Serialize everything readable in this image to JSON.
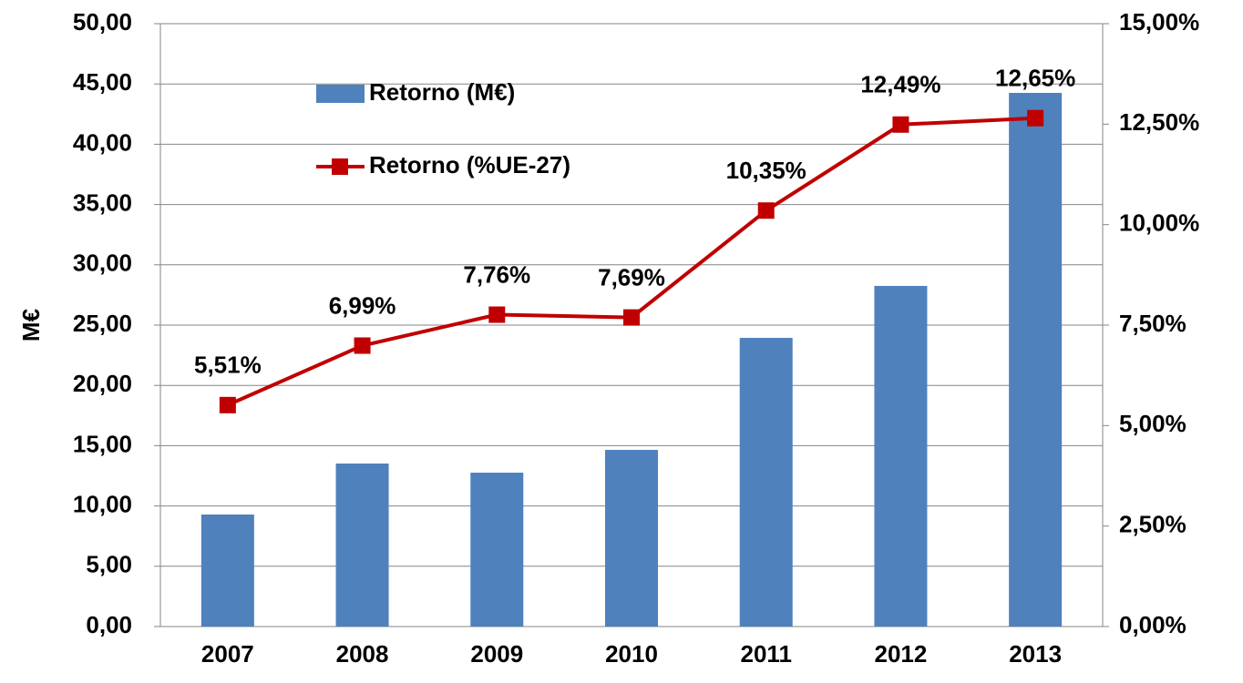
{
  "chart_data": {
    "type": "bar",
    "categories": [
      "2007",
      "2008",
      "2009",
      "2010",
      "2011",
      "2012",
      "2013"
    ],
    "series": [
      {
        "name": "Retorno (M€)",
        "type": "bar",
        "color": "#4f81bd",
        "values": [
          9.29,
          13.52,
          12.76,
          14.65,
          23.94,
          28.25,
          44.26
        ]
      },
      {
        "name": "Retorno (%UE-27)",
        "type": "line",
        "axis": "y2",
        "color": "#c00000",
        "values": [
          5.51,
          6.99,
          7.76,
          7.69,
          10.35,
          12.49,
          12.65
        ],
        "value_labels": [
          "5,51%",
          "6,99%",
          "7,76%",
          "7,69%",
          "10,35%",
          "12,49%",
          "12,65%"
        ]
      }
    ],
    "ylabel": "M€",
    "ylim": [
      0,
      50
    ],
    "yticks": [
      {
        "value": 0,
        "label": "0,00"
      },
      {
        "value": 5,
        "label": "5,00"
      },
      {
        "value": 10,
        "label": "10,00"
      },
      {
        "value": 15,
        "label": "15,00"
      },
      {
        "value": 20,
        "label": "20,00"
      },
      {
        "value": 25,
        "label": "25,00"
      },
      {
        "value": 30,
        "label": "30,00"
      },
      {
        "value": 35,
        "label": "35,00"
      },
      {
        "value": 40,
        "label": "40,00"
      },
      {
        "value": 45,
        "label": "45,00"
      },
      {
        "value": 50,
        "label": "50,00"
      }
    ],
    "y2lim": [
      0,
      15
    ],
    "y2ticks": [
      {
        "value": 0,
        "label": "0,00%"
      },
      {
        "value": 2.5,
        "label": "2,50%"
      },
      {
        "value": 5,
        "label": "5,00%"
      },
      {
        "value": 7.5,
        "label": "7,50%"
      },
      {
        "value": 10,
        "label": "10,00%"
      },
      {
        "value": 12.5,
        "label": "12,50%"
      },
      {
        "value": 15,
        "label": "15,00%"
      }
    ],
    "grid": true
  }
}
